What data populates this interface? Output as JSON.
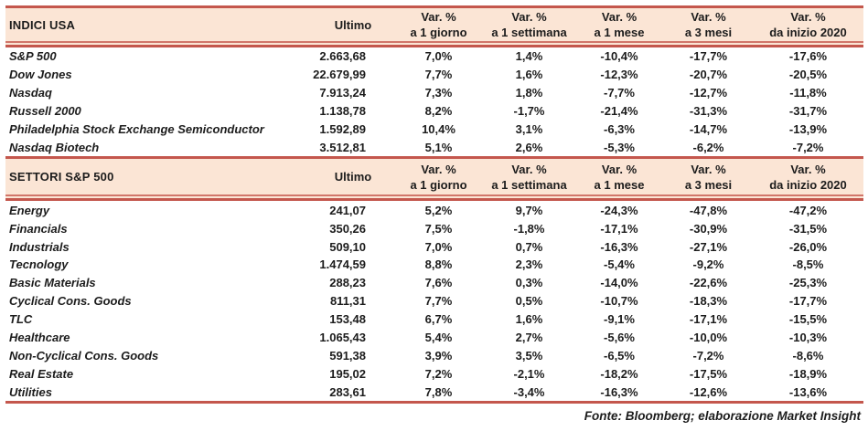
{
  "labels": {
    "var": "Var. %",
    "ultimo": "Ultimo",
    "periods": [
      "a 1 giorno",
      "a 1 settimana",
      "a 1 mese",
      "a 3 mesi",
      "da inizio 2020"
    ]
  },
  "indici": {
    "title": "INDICI USA",
    "rows": [
      {
        "name": "S&P 500",
        "ultimo": "2.663,68",
        "vars": [
          "7,0%",
          "1,4%",
          "-10,4%",
          "-17,7%",
          "-17,6%"
        ]
      },
      {
        "name": "Dow Jones",
        "ultimo": "22.679,99",
        "vars": [
          "7,7%",
          "1,6%",
          "-12,3%",
          "-20,7%",
          "-20,5%"
        ]
      },
      {
        "name": "Nasdaq",
        "ultimo": "7.913,24",
        "vars": [
          "7,3%",
          "1,8%",
          "-7,7%",
          "-12,7%",
          "-11,8%"
        ]
      },
      {
        "name": "Russell 2000",
        "ultimo": "1.138,78",
        "vars": [
          "8,2%",
          "-1,7%",
          "-21,4%",
          "-31,3%",
          "-31,7%"
        ]
      },
      {
        "name": "Philadelphia Stock Exchange Semiconductor",
        "ultimo": "1.592,89",
        "vars": [
          "10,4%",
          "3,1%",
          "-6,3%",
          "-14,7%",
          "-13,9%"
        ]
      },
      {
        "name": "Nasdaq Biotech",
        "ultimo": "3.512,81",
        "vars": [
          "5,1%",
          "2,6%",
          "-5,3%",
          "-6,2%",
          "-7,2%"
        ]
      }
    ]
  },
  "settori": {
    "title": "SETTORI S&P 500",
    "rows": [
      {
        "name": "Energy",
        "ultimo": "241,07",
        "vars": [
          "5,2%",
          "9,7%",
          "-24,3%",
          "-47,8%",
          "-47,2%"
        ]
      },
      {
        "name": "Financials",
        "ultimo": "350,26",
        "vars": [
          "7,5%",
          "-1,8%",
          "-17,1%",
          "-30,9%",
          "-31,5%"
        ]
      },
      {
        "name": "Industrials",
        "ultimo": "509,10",
        "vars": [
          "7,0%",
          "0,7%",
          "-16,3%",
          "-27,1%",
          "-26,0%"
        ]
      },
      {
        "name": "Tecnology",
        "ultimo": "1.474,59",
        "vars": [
          "8,8%",
          "2,3%",
          "-5,4%",
          "-9,2%",
          "-8,5%"
        ]
      },
      {
        "name": "Basic Materials",
        "ultimo": "288,23",
        "vars": [
          "7,6%",
          "0,3%",
          "-14,0%",
          "-22,6%",
          "-25,3%"
        ]
      },
      {
        "name": "Cyclical Cons. Goods",
        "ultimo": "811,31",
        "vars": [
          "7,7%",
          "0,5%",
          "-10,7%",
          "-18,3%",
          "-17,7%"
        ]
      },
      {
        "name": "TLC",
        "ultimo": "153,48",
        "vars": [
          "6,7%",
          "1,6%",
          "-9,1%",
          "-17,1%",
          "-15,5%"
        ]
      },
      {
        "name": "Healthcare",
        "ultimo": "1.065,43",
        "vars": [
          "5,4%",
          "2,7%",
          "-5,6%",
          "-10,0%",
          "-10,3%"
        ]
      },
      {
        "name": "Non-Cyclical Cons. Goods",
        "ultimo": "591,38",
        "vars": [
          "3,9%",
          "3,5%",
          "-6,5%",
          "-7,2%",
          "-8,6%"
        ]
      },
      {
        "name": "Real Estate",
        "ultimo": "195,02",
        "vars": [
          "7,2%",
          "-2,1%",
          "-18,2%",
          "-17,5%",
          "-18,9%"
        ]
      },
      {
        "name": "Utilities",
        "ultimo": "283,61",
        "vars": [
          "7,8%",
          "-3,4%",
          "-16,3%",
          "-12,6%",
          "-13,6%"
        ]
      }
    ]
  },
  "footer": "Fonte: Bloomberg; elaborazione Market Insight",
  "colors": {
    "band_background": "#fbe5d5",
    "rule_red": "#c4574d",
    "rule_red_light": "#d1766a",
    "text": "#1c1c1c"
  }
}
